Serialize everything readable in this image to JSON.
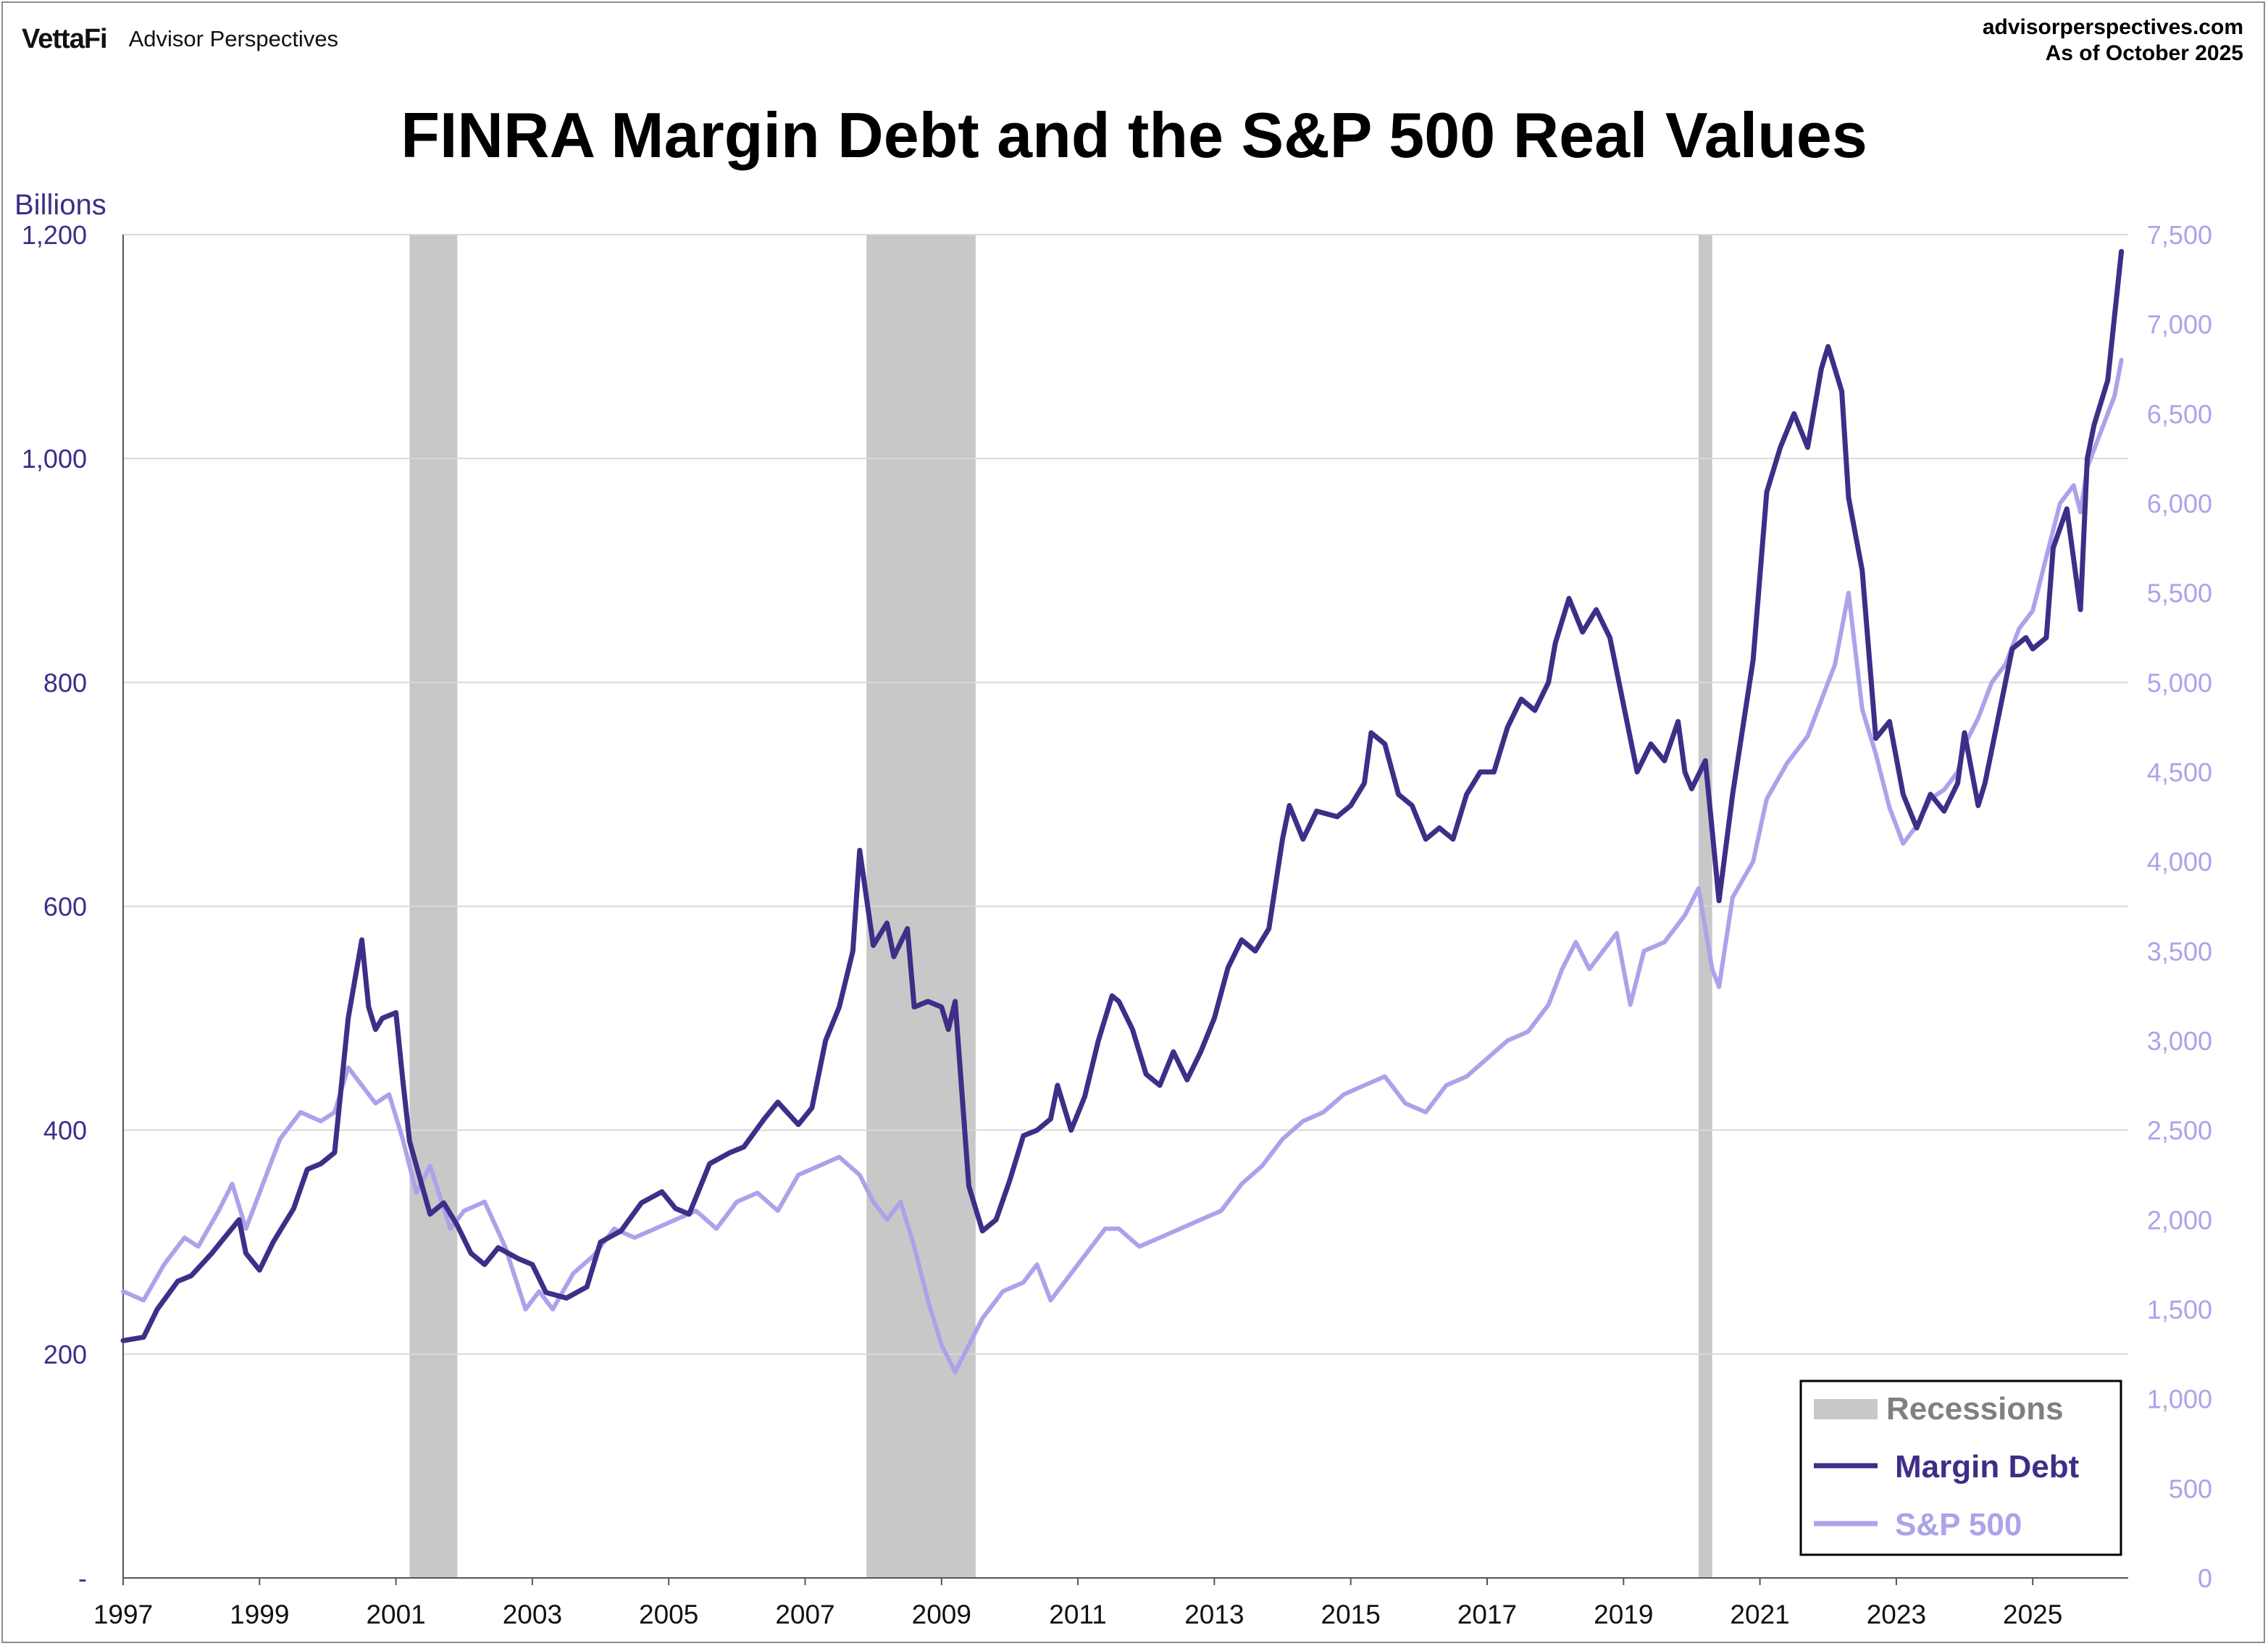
{
  "header": {
    "brand_logo": "VettaFi",
    "brand_name": "Advisor Perspectives",
    "source_url": "advisorperspectives.com",
    "as_of": "As of October 2025"
  },
  "chart_data": {
    "type": "line",
    "title": "FINRA Margin Debt and the S&P 500 Real Values",
    "y_left_unit": "Billions",
    "y_left_ticks": [
      "-",
      "200",
      "400",
      "600",
      "800",
      "1,000",
      "1,200"
    ],
    "y_left_range": [
      0,
      1200
    ],
    "y_right_ticks": [
      "0",
      "500",
      "1,000",
      "1,500",
      "2,000",
      "2,500",
      "3,000",
      "3,500",
      "4,000",
      "4,500",
      "5,000",
      "5,500",
      "6,000",
      "6,500",
      "7,000",
      "7,500"
    ],
    "y_right_range": [
      0,
      7500
    ],
    "x_range": [
      1997.0,
      2025.9
    ],
    "x_ticks": [
      "1997",
      "1999",
      "2001",
      "2003",
      "2005",
      "2007",
      "2009",
      "2011",
      "2013",
      "2015",
      "2017",
      "2019",
      "2021",
      "2023",
      "2025"
    ],
    "grid": "horizontal",
    "legend_position": "bottom-right",
    "legend": [
      "Recessions",
      "Margin Debt",
      "S&P 500"
    ],
    "recessions": [
      [
        2001.2,
        2001.9
      ],
      [
        2007.9,
        2009.5
      ],
      [
        2020.1,
        2020.3
      ]
    ],
    "colors": {
      "margin_debt": "#3f2d87",
      "sp500": "#aba3ea",
      "recession": "#c8c8c8",
      "axis_left": "#3f2d87",
      "axis_right": "#aba3ea",
      "grid": "#d9d9d9"
    },
    "series": [
      {
        "name": "Margin Debt",
        "axis": "left",
        "points": [
          [
            1997.0,
            212
          ],
          [
            1997.3,
            215
          ],
          [
            1997.5,
            240
          ],
          [
            1997.8,
            265
          ],
          [
            1998.0,
            270
          ],
          [
            1998.3,
            290
          ],
          [
            1998.5,
            305
          ],
          [
            1998.7,
            320
          ],
          [
            1998.8,
            290
          ],
          [
            1999.0,
            275
          ],
          [
            1999.2,
            300
          ],
          [
            1999.5,
            330
          ],
          [
            1999.7,
            365
          ],
          [
            1999.9,
            370
          ],
          [
            2000.1,
            380
          ],
          [
            2000.3,
            500
          ],
          [
            2000.5,
            570
          ],
          [
            2000.6,
            510
          ],
          [
            2000.7,
            490
          ],
          [
            2000.8,
            500
          ],
          [
            2001.0,
            505
          ],
          [
            2001.1,
            445
          ],
          [
            2001.2,
            390
          ],
          [
            2001.5,
            325
          ],
          [
            2001.7,
            335
          ],
          [
            2001.9,
            315
          ],
          [
            2002.1,
            290
          ],
          [
            2002.3,
            280
          ],
          [
            2002.5,
            295
          ],
          [
            2002.8,
            285
          ],
          [
            2003.0,
            280
          ],
          [
            2003.2,
            255
          ],
          [
            2003.5,
            250
          ],
          [
            2003.8,
            260
          ],
          [
            2004.0,
            300
          ],
          [
            2004.3,
            310
          ],
          [
            2004.6,
            335
          ],
          [
            2004.9,
            345
          ],
          [
            2005.1,
            330
          ],
          [
            2005.3,
            325
          ],
          [
            2005.6,
            370
          ],
          [
            2005.9,
            380
          ],
          [
            2006.1,
            385
          ],
          [
            2006.4,
            410
          ],
          [
            2006.6,
            425
          ],
          [
            2006.9,
            405
          ],
          [
            2007.1,
            420
          ],
          [
            2007.3,
            480
          ],
          [
            2007.5,
            510
          ],
          [
            2007.7,
            560
          ],
          [
            2007.8,
            650
          ],
          [
            2008.0,
            565
          ],
          [
            2008.2,
            585
          ],
          [
            2008.3,
            555
          ],
          [
            2008.5,
            580
          ],
          [
            2008.6,
            510
          ],
          [
            2008.8,
            515
          ],
          [
            2009.0,
            510
          ],
          [
            2009.1,
            490
          ],
          [
            2009.2,
            515
          ],
          [
            2009.4,
            350
          ],
          [
            2009.6,
            310
          ],
          [
            2009.8,
            320
          ],
          [
            2010.0,
            355
          ],
          [
            2010.2,
            395
          ],
          [
            2010.4,
            400
          ],
          [
            2010.6,
            410
          ],
          [
            2010.7,
            440
          ],
          [
            2010.9,
            400
          ],
          [
            2011.1,
            430
          ],
          [
            2011.3,
            480
          ],
          [
            2011.5,
            520
          ],
          [
            2011.6,
            515
          ],
          [
            2011.8,
            490
          ],
          [
            2012.0,
            450
          ],
          [
            2012.2,
            440
          ],
          [
            2012.4,
            470
          ],
          [
            2012.6,
            445
          ],
          [
            2012.8,
            470
          ],
          [
            2013.0,
            500
          ],
          [
            2013.2,
            545
          ],
          [
            2013.4,
            570
          ],
          [
            2013.6,
            560
          ],
          [
            2013.8,
            580
          ],
          [
            2014.0,
            660
          ],
          [
            2014.1,
            690
          ],
          [
            2014.3,
            660
          ],
          [
            2014.5,
            685
          ],
          [
            2014.8,
            680
          ],
          [
            2015.0,
            690
          ],
          [
            2015.2,
            710
          ],
          [
            2015.3,
            755
          ],
          [
            2015.5,
            745
          ],
          [
            2015.7,
            700
          ],
          [
            2015.9,
            690
          ],
          [
            2016.1,
            660
          ],
          [
            2016.3,
            670
          ],
          [
            2016.5,
            660
          ],
          [
            2016.7,
            700
          ],
          [
            2016.9,
            720
          ],
          [
            2017.1,
            720
          ],
          [
            2017.3,
            760
          ],
          [
            2017.5,
            785
          ],
          [
            2017.7,
            775
          ],
          [
            2017.9,
            800
          ],
          [
            2018.0,
            835
          ],
          [
            2018.2,
            875
          ],
          [
            2018.4,
            845
          ],
          [
            2018.6,
            865
          ],
          [
            2018.8,
            840
          ],
          [
            2019.0,
            780
          ],
          [
            2019.2,
            720
          ],
          [
            2019.4,
            745
          ],
          [
            2019.6,
            730
          ],
          [
            2019.8,
            765
          ],
          [
            2019.9,
            720
          ],
          [
            2020.0,
            705
          ],
          [
            2020.2,
            730
          ],
          [
            2020.4,
            605
          ],
          [
            2020.6,
            700
          ],
          [
            2020.9,
            820
          ],
          [
            2021.1,
            970
          ],
          [
            2021.3,
            1010
          ],
          [
            2021.5,
            1040
          ],
          [
            2021.7,
            1010
          ],
          [
            2021.9,
            1080
          ],
          [
            2022.0,
            1100
          ],
          [
            2022.2,
            1060
          ],
          [
            2022.3,
            965
          ],
          [
            2022.5,
            900
          ],
          [
            2022.7,
            750
          ],
          [
            2022.9,
            765
          ],
          [
            2023.1,
            700
          ],
          [
            2023.3,
            670
          ],
          [
            2023.5,
            700
          ],
          [
            2023.7,
            685
          ],
          [
            2023.9,
            710
          ],
          [
            2024.0,
            755
          ],
          [
            2024.2,
            690
          ],
          [
            2024.3,
            710
          ],
          [
            2024.5,
            770
          ],
          [
            2024.7,
            830
          ],
          [
            2024.9,
            840
          ],
          [
            2025.0,
            830
          ],
          [
            2025.2,
            840
          ],
          [
            2025.3,
            920
          ],
          [
            2025.5,
            955
          ],
          [
            2025.7,
            865
          ],
          [
            2025.8,
            1000
          ],
          [
            2025.9,
            1030
          ],
          [
            2026.1,
            1070
          ],
          [
            2026.3,
            1185
          ]
        ]
      },
      {
        "name": "S&P 500",
        "axis": "right",
        "points": [
          [
            1997.0,
            1600
          ],
          [
            1997.3,
            1550
          ],
          [
            1997.6,
            1750
          ],
          [
            1997.9,
            1900
          ],
          [
            1998.1,
            1850
          ],
          [
            1998.4,
            2050
          ],
          [
            1998.6,
            2200
          ],
          [
            1998.8,
            1950
          ],
          [
            1999.1,
            2250
          ],
          [
            1999.3,
            2450
          ],
          [
            1999.6,
            2600
          ],
          [
            1999.9,
            2550
          ],
          [
            2000.1,
            2600
          ],
          [
            2000.3,
            2850
          ],
          [
            2000.5,
            2750
          ],
          [
            2000.7,
            2650
          ],
          [
            2000.9,
            2700
          ],
          [
            2001.1,
            2450
          ],
          [
            2001.3,
            2150
          ],
          [
            2001.5,
            2300
          ],
          [
            2001.8,
            1950
          ],
          [
            2002.0,
            2050
          ],
          [
            2002.3,
            2100
          ],
          [
            2002.6,
            1850
          ],
          [
            2002.9,
            1500
          ],
          [
            2003.1,
            1600
          ],
          [
            2003.3,
            1500
          ],
          [
            2003.6,
            1700
          ],
          [
            2003.9,
            1800
          ],
          [
            2004.2,
            1950
          ],
          [
            2004.5,
            1900
          ],
          [
            2004.8,
            1950
          ],
          [
            2005.1,
            2000
          ],
          [
            2005.4,
            2050
          ],
          [
            2005.7,
            1950
          ],
          [
            2006.0,
            2100
          ],
          [
            2006.3,
            2150
          ],
          [
            2006.6,
            2050
          ],
          [
            2006.9,
            2250
          ],
          [
            2007.2,
            2300
          ],
          [
            2007.5,
            2350
          ],
          [
            2007.8,
            2250
          ],
          [
            2008.0,
            2100
          ],
          [
            2008.2,
            2000
          ],
          [
            2008.4,
            2100
          ],
          [
            2008.6,
            1850
          ],
          [
            2008.8,
            1550
          ],
          [
            2009.0,
            1300
          ],
          [
            2009.2,
            1150
          ],
          [
            2009.4,
            1300
          ],
          [
            2009.6,
            1450
          ],
          [
            2009.9,
            1600
          ],
          [
            2010.2,
            1650
          ],
          [
            2010.4,
            1750
          ],
          [
            2010.6,
            1550
          ],
          [
            2010.9,
            1700
          ],
          [
            2011.2,
            1850
          ],
          [
            2011.4,
            1950
          ],
          [
            2011.6,
            1950
          ],
          [
            2011.9,
            1850
          ],
          [
            2012.2,
            1900
          ],
          [
            2012.5,
            1950
          ],
          [
            2012.8,
            2000
          ],
          [
            2013.1,
            2050
          ],
          [
            2013.4,
            2200
          ],
          [
            2013.7,
            2300
          ],
          [
            2014.0,
            2450
          ],
          [
            2014.3,
            2550
          ],
          [
            2014.6,
            2600
          ],
          [
            2014.9,
            2700
          ],
          [
            2015.2,
            2750
          ],
          [
            2015.5,
            2800
          ],
          [
            2015.8,
            2650
          ],
          [
            2016.1,
            2600
          ],
          [
            2016.4,
            2750
          ],
          [
            2016.7,
            2800
          ],
          [
            2017.0,
            2900
          ],
          [
            2017.3,
            3000
          ],
          [
            2017.6,
            3050
          ],
          [
            2017.9,
            3200
          ],
          [
            2018.1,
            3400
          ],
          [
            2018.3,
            3550
          ],
          [
            2018.5,
            3400
          ],
          [
            2018.7,
            3500
          ],
          [
            2018.9,
            3600
          ],
          [
            2019.1,
            3200
          ],
          [
            2019.3,
            3500
          ],
          [
            2019.6,
            3550
          ],
          [
            2019.9,
            3700
          ],
          [
            2020.1,
            3850
          ],
          [
            2020.3,
            3400
          ],
          [
            2020.4,
            3300
          ],
          [
            2020.6,
            3800
          ],
          [
            2020.9,
            4000
          ],
          [
            2021.1,
            4350
          ],
          [
            2021.4,
            4550
          ],
          [
            2021.7,
            4700
          ],
          [
            2022.0,
            5000
          ],
          [
            2022.1,
            5100
          ],
          [
            2022.3,
            5500
          ],
          [
            2022.5,
            4850
          ],
          [
            2022.7,
            4600
          ],
          [
            2022.9,
            4300
          ],
          [
            2023.1,
            4100
          ],
          [
            2023.3,
            4200
          ],
          [
            2023.5,
            4350
          ],
          [
            2023.7,
            4400
          ],
          [
            2023.9,
            4500
          ],
          [
            2024.0,
            4650
          ],
          [
            2024.2,
            4800
          ],
          [
            2024.4,
            5000
          ],
          [
            2024.6,
            5100
          ],
          [
            2024.8,
            5300
          ],
          [
            2025.0,
            5400
          ],
          [
            2025.2,
            5700
          ],
          [
            2025.4,
            6000
          ],
          [
            2025.6,
            6100
          ],
          [
            2025.7,
            5950
          ],
          [
            2025.8,
            6200
          ],
          [
            2026.0,
            6400
          ],
          [
            2026.2,
            6600
          ],
          [
            2026.3,
            6800
          ]
        ]
      }
    ]
  }
}
